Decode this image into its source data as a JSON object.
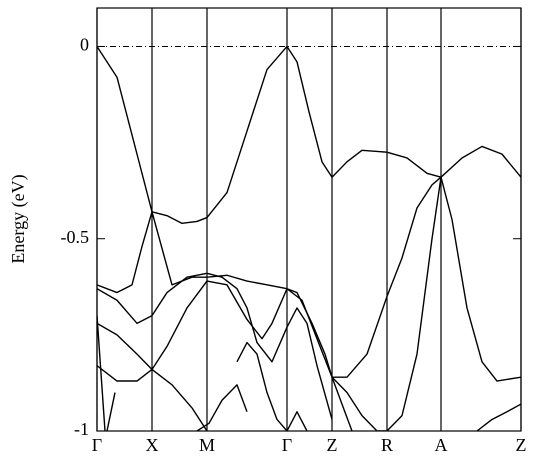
{
  "chart_data": {
    "type": "line",
    "ylabel": "Energy (eV)",
    "xlim": [
      0,
      424
    ],
    "ylim": [
      -1,
      0.1
    ],
    "xticks": [
      {
        "value": 0,
        "label": "Γ"
      },
      {
        "value": 55,
        "label": "X"
      },
      {
        "value": 110,
        "label": "M"
      },
      {
        "value": 190,
        "label": "Γ"
      },
      {
        "value": 235,
        "label": "Z"
      },
      {
        "value": 290,
        "label": "R"
      },
      {
        "value": 344,
        "label": "A"
      },
      {
        "value": 424,
        "label": "Z"
      }
    ],
    "yticks": [
      0,
      -0.5,
      -1
    ],
    "fermi_level": 0,
    "line_color": "#000000",
    "series": [
      {
        "x": [
          0,
          20,
          40,
          55,
          70,
          85,
          100,
          110,
          130,
          150,
          170,
          190,
          200,
          212,
          225,
          235,
          250,
          265,
          290,
          310,
          330,
          344,
          365,
          385,
          405,
          424
        ],
        "values": [
          0,
          -0.08,
          -0.28,
          -0.43,
          -0.44,
          -0.46,
          -0.455,
          -0.445,
          -0.38,
          -0.22,
          -0.06,
          0,
          -0.04,
          -0.17,
          -0.3,
          -0.34,
          -0.3,
          -0.27,
          -0.275,
          -0.29,
          -0.33,
          -0.34,
          -0.29,
          -0.26,
          -0.28,
          -0.34
        ]
      },
      {
        "x": [
          0,
          20,
          35,
          45,
          55,
          75,
          95,
          110,
          130,
          150,
          170,
          190,
          205,
          220,
          235,
          250,
          270,
          290,
          305,
          320,
          335,
          344,
          355,
          370,
          385,
          400,
          424
        ],
        "values": [
          -0.62,
          -0.64,
          -0.62,
          -0.52,
          -0.43,
          -0.62,
          -0.6,
          -0.6,
          -0.595,
          -0.61,
          -0.62,
          -0.63,
          -0.66,
          -0.76,
          -0.86,
          -0.86,
          -0.8,
          -0.65,
          -0.55,
          -0.42,
          -0.36,
          -0.34,
          -0.45,
          -0.68,
          -0.82,
          -0.87,
          -0.86
        ]
      },
      {
        "x": [
          0,
          20,
          40,
          55,
          70,
          90,
          110,
          130,
          150,
          165,
          175,
          190,
          200,
          215,
          228,
          235,
          245,
          255
        ],
        "values": [
          -0.72,
          -0.75,
          -0.8,
          -0.84,
          -0.78,
          -0.68,
          -0.61,
          -0.62,
          -0.71,
          -0.76,
          -0.72,
          -0.63,
          -0.64,
          -0.72,
          -0.8,
          -0.86,
          -0.93,
          -1.0
        ]
      },
      {
        "x": [
          0,
          20,
          40,
          55,
          70,
          90,
          110,
          125,
          140,
          150,
          160,
          175,
          190,
          200,
          210,
          220,
          235
        ],
        "values": [
          -0.63,
          -0.66,
          -0.72,
          -0.7,
          -0.64,
          -0.6,
          -0.59,
          -0.6,
          -0.63,
          -0.68,
          -0.77,
          -0.82,
          -0.73,
          -0.68,
          -0.72,
          -0.83,
          -0.97
        ]
      },
      {
        "x": [
          0,
          20,
          40,
          55,
          75,
          95,
          110,
          null,
          140,
          150,
          160,
          170,
          180,
          190,
          200,
          210
        ],
        "values": [
          -0.83,
          -0.87,
          -0.87,
          -0.84,
          -0.88,
          -0.94,
          -1.0,
          null,
          -0.82,
          -0.77,
          -0.8,
          -0.9,
          -0.97,
          -1.0,
          -0.95,
          -1.0
        ]
      },
      {
        "x": [
          0,
          8,
          null,
          10,
          18,
          null,
          100,
          112,
          125,
          140,
          150,
          null,
          235,
          250,
          265,
          280,
          290,
          305,
          320,
          335,
          344,
          null,
          380,
          395,
          410,
          424
        ],
        "values": [
          -0.7,
          -1.0,
          null,
          -1.0,
          -0.9,
          null,
          -1.0,
          -0.98,
          -0.92,
          -0.88,
          -0.95,
          null,
          -0.86,
          -0.9,
          -0.96,
          -1.0,
          -1.0,
          -0.96,
          -0.8,
          -0.5,
          -0.34,
          null,
          -1.0,
          -0.97,
          -0.95,
          -0.93
        ]
      }
    ]
  }
}
